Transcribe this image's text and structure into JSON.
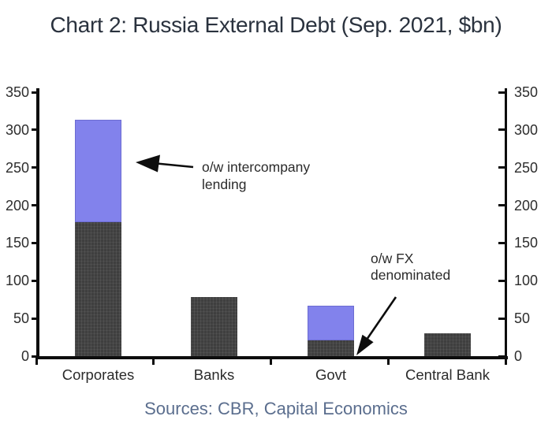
{
  "title": "Chart 2: Russia External Debt (Sep. 2021, $bn)",
  "source": "Sources: CBR, Capital Economics",
  "colors": {
    "bar_dark": "#3f3f3f",
    "bar_purple": "#8282ec",
    "axis": "#0d0d0d",
    "title_text": "#2a323e",
    "source_text": "#5b6e8e",
    "chart_text": "#2d2d2d"
  },
  "chart_data": {
    "type": "bar",
    "stacked": true,
    "title": "Chart 2: Russia External Debt (Sep. 2021, $bn)",
    "categories": [
      "Corporates",
      "Banks",
      "Govt",
      "Central Bank"
    ],
    "series": [
      {
        "name": "lower segment (dark grey)",
        "color": "#3f3f3f",
        "values": [
          178,
          78,
          21,
          30
        ]
      },
      {
        "name": "upper segment (blue/purple)",
        "color": "#8282ec",
        "values": [
          135,
          0,
          46,
          0
        ]
      }
    ],
    "totals": [
      313,
      78,
      67,
      30
    ],
    "xlabel": "",
    "ylabel": "",
    "ylim": [
      0,
      350
    ],
    "yticks": [
      0,
      50,
      100,
      150,
      200,
      250,
      300,
      350
    ],
    "dual_axis": true,
    "grid": false,
    "legend": false,
    "annotations": [
      {
        "text": "o/w intercompany lending",
        "target": "Corporates upper (blue) segment, 135"
      },
      {
        "text": "o/w FX denominated",
        "target": "Govt lower (dark) segment, 21"
      }
    ],
    "source": "Sources: CBR, Capital Economics"
  }
}
